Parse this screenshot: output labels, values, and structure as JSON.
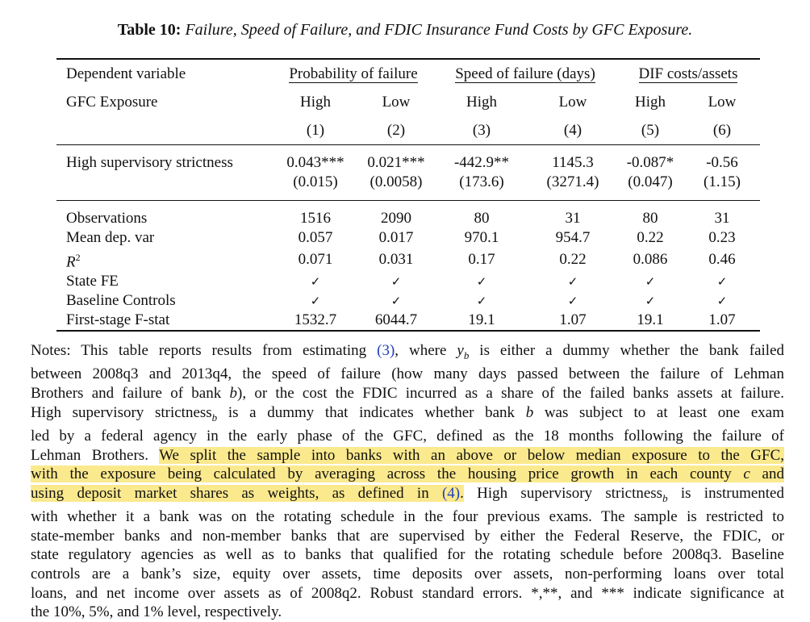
{
  "caption": {
    "label": "Table 10:",
    "title": "Failure, Speed of Failure, and FDIC Insurance Fund Costs by GFC Exposure."
  },
  "table": {
    "header": {
      "dep_var_label": "Dependent variable",
      "groups": [
        "Probability of failure",
        "Speed of failure (days)",
        "DIF costs/assets"
      ],
      "exposure_label": "GFC Exposure",
      "exposure": [
        "High",
        "Low",
        "High",
        "Low",
        "High",
        "Low"
      ],
      "col_numbers": [
        "(1)",
        "(2)",
        "(3)",
        "(4)",
        "(5)",
        "(6)"
      ]
    },
    "coef_row": {
      "label": "High supervisory strictness",
      "estimates": [
        "0.043***",
        "0.021***",
        "-442.9**",
        "1145.3",
        "-0.087*",
        "-0.56"
      ],
      "std_errors": [
        "(0.015)",
        "(0.0058)",
        "(173.6)",
        "(3271.4)",
        "(0.047)",
        "(1.15)"
      ]
    },
    "stats": [
      {
        "label": "Observations",
        "values": [
          "1516",
          "2090",
          "80",
          "31",
          "80",
          "31"
        ]
      },
      {
        "label": "Mean dep. var",
        "values": [
          "0.057",
          "0.017",
          "970.1",
          "954.7",
          "0.22",
          "0.23"
        ]
      },
      {
        "label": "R",
        "sup": "2",
        "values": [
          "0.071",
          "0.031",
          "0.17",
          "0.22",
          "0.086",
          "0.46"
        ]
      },
      {
        "label": "State FE",
        "values": [
          "✓",
          "✓",
          "✓",
          "✓",
          "✓",
          "✓"
        ]
      },
      {
        "label": "Baseline Controls",
        "values": [
          "✓",
          "✓",
          "✓",
          "✓",
          "✓",
          "✓"
        ]
      },
      {
        "label": "First-stage F-stat",
        "values": [
          "1532.7",
          "6044.7",
          "19.1",
          "1.07",
          "19.1",
          "1.07"
        ]
      }
    ]
  },
  "notes": {
    "l1a": "Notes: This table reports results from estimating ",
    "l1ref": "(3)",
    "l1b": ", where ",
    "l1y": "y",
    "l1sub": "b",
    "l1c": " is either a dummy whether the bank failed",
    "l2": "between 2008q3 and 2013q4, the speed of failure (how many days passed between the failure of Lehman",
    "l3a": "Brothers and failure of bank ",
    "l3b": "b",
    "l3c": "), or the cost the FDIC incurred as a share of the failed banks assets at failure.",
    "l4a": "High supervisory strictness",
    "l4sub": "b",
    "l4b": " is a dummy that indicates whether bank ",
    "l4c": "b",
    "l4d": " was subject to at least one exam",
    "l5": "led by a federal agency in the early phase of the GFC, defined as the 18 months following the failure of",
    "l6a": "Lehman Brothers. ",
    "l6hl": "We split the sample into banks with an above or below median exposure to the GFC,",
    "l7a": "with the exposure being calculated by averaging across the housing price growth in each county ",
    "l7c": "c",
    "l7b": " and",
    "l8a": "using deposit market shares as weights, as defined in ",
    "l8ref": "(4)",
    "l8b": ".",
    "l8c": " High supervisory strictness",
    "l8sub": "b",
    "l8d": " is instrumented",
    "l9": "with whether it a bank was on the rotating schedule in the four previous exams. The sample is restricted to",
    "l10": "state-member banks and non-member banks that are supervised by either the Federal Reserve, the FDIC, or",
    "l11": "state regulatory agencies as well as to banks that qualified for the rotating schedule before 2008q3. Baseline",
    "l12": "controls are a bank’s size, equity over assets, time deposits over assets, non-performing loans over total",
    "l13": "loans, and net income over assets as of 2008q2. Robust standard errors. *,**, and *** indicate significance at",
    "l14": "the 10%, 5%, and 1% level, respectively."
  },
  "colors": {
    "highlight": "#fbe98d",
    "link": "#2040c0"
  }
}
